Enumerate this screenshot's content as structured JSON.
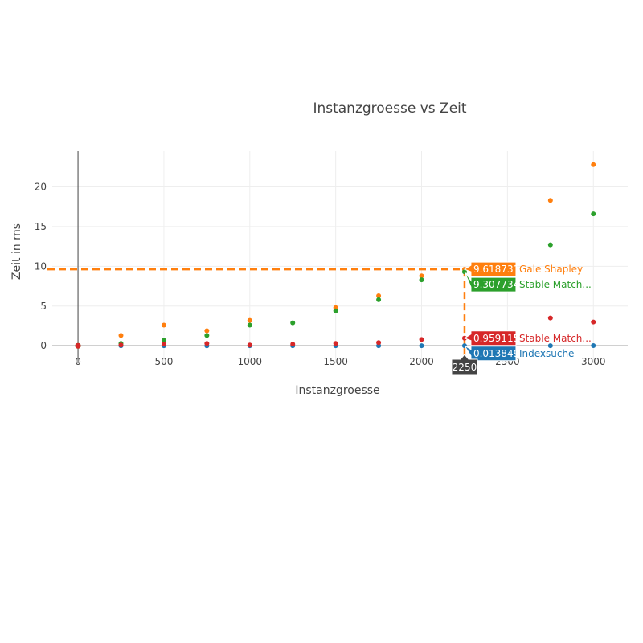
{
  "chart_data": {
    "type": "scatter",
    "title": "Instanzgroesse vs Zeit",
    "xlabel": "Instanzgroesse",
    "ylabel": "Zeit in ms",
    "xlim": [
      -150,
      3200
    ],
    "ylim": [
      -2.2,
      24.5
    ],
    "xticks": [
      0,
      500,
      1000,
      1500,
      2000,
      2500,
      3000
    ],
    "yticks": [
      0,
      5,
      10,
      15,
      20
    ],
    "grid": true,
    "x": [
      0,
      250,
      500,
      750,
      1000,
      1250,
      1500,
      1750,
      2000,
      2250,
      2500,
      2750,
      3000
    ],
    "series": [
      {
        "name": "Indexsuche",
        "color": "#1f77b4",
        "values": [
          0.0,
          0.01,
          0.01,
          0.0,
          0.01,
          0.01,
          0.01,
          0.01,
          0.01,
          0.013849,
          null,
          0.01,
          0.02
        ]
      },
      {
        "name": "Gale Shapley",
        "color": "#ff7f0e",
        "values": [
          0.0,
          1.3,
          2.6,
          1.9,
          3.2,
          null,
          4.8,
          6.3,
          8.8,
          9.618731,
          null,
          18.3,
          22.8
        ]
      },
      {
        "name": "Stable Match...",
        "color": "#2ca02c",
        "values": [
          0.0,
          0.3,
          0.7,
          1.3,
          2.6,
          2.9,
          4.4,
          5.8,
          8.3,
          9.307734,
          null,
          12.7,
          16.6
        ]
      },
      {
        "name": "Stable Match...",
        "color": "#d62728",
        "values": [
          0.0,
          0.1,
          0.2,
          0.3,
          0.1,
          0.2,
          0.3,
          0.4,
          0.8,
          0.959115,
          null,
          3.5,
          3.0
        ]
      }
    ],
    "hover": {
      "x": 2250,
      "x_label": "2250",
      "spike_series_index": 1,
      "labels": [
        {
          "series_index": 1,
          "value": "9.618731",
          "name": "Gale Shapley"
        },
        {
          "series_index": 2,
          "value": "9.307734",
          "name": "Stable Match..."
        },
        {
          "series_index": 3,
          "value": "0.959115",
          "name": "Stable Match..."
        },
        {
          "series_index": 0,
          "value": "0.013849",
          "name": "Indexsuche"
        }
      ]
    }
  }
}
